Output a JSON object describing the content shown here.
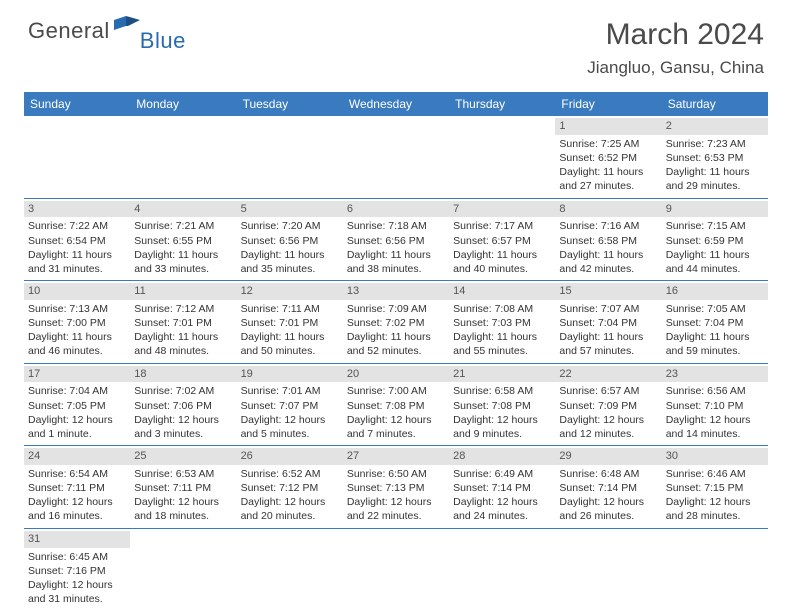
{
  "logo": {
    "general": "General",
    "blue": "Blue"
  },
  "header": {
    "month_title": "March 2024",
    "location": "Jiangluo, Gansu, China"
  },
  "colors": {
    "header_bg": "#3a7bbf",
    "header_text": "#ffffff",
    "daynum_bg": "#e3e3e3",
    "daynum_text": "#555555",
    "body_text": "#333333",
    "rule": "#3a7bbf",
    "logo_gray": "#4a4a4a",
    "logo_blue": "#2a6bb0"
  },
  "weekdays": [
    "Sunday",
    "Monday",
    "Tuesday",
    "Wednesday",
    "Thursday",
    "Friday",
    "Saturday"
  ],
  "weeks": [
    [
      null,
      null,
      null,
      null,
      null,
      {
        "n": "1",
        "sunrise": "Sunrise: 7:25 AM",
        "sunset": "Sunset: 6:52 PM",
        "daylight": "Daylight: 11 hours and 27 minutes."
      },
      {
        "n": "2",
        "sunrise": "Sunrise: 7:23 AM",
        "sunset": "Sunset: 6:53 PM",
        "daylight": "Daylight: 11 hours and 29 minutes."
      }
    ],
    [
      {
        "n": "3",
        "sunrise": "Sunrise: 7:22 AM",
        "sunset": "Sunset: 6:54 PM",
        "daylight": "Daylight: 11 hours and 31 minutes."
      },
      {
        "n": "4",
        "sunrise": "Sunrise: 7:21 AM",
        "sunset": "Sunset: 6:55 PM",
        "daylight": "Daylight: 11 hours and 33 minutes."
      },
      {
        "n": "5",
        "sunrise": "Sunrise: 7:20 AM",
        "sunset": "Sunset: 6:56 PM",
        "daylight": "Daylight: 11 hours and 35 minutes."
      },
      {
        "n": "6",
        "sunrise": "Sunrise: 7:18 AM",
        "sunset": "Sunset: 6:56 PM",
        "daylight": "Daylight: 11 hours and 38 minutes."
      },
      {
        "n": "7",
        "sunrise": "Sunrise: 7:17 AM",
        "sunset": "Sunset: 6:57 PM",
        "daylight": "Daylight: 11 hours and 40 minutes."
      },
      {
        "n": "8",
        "sunrise": "Sunrise: 7:16 AM",
        "sunset": "Sunset: 6:58 PM",
        "daylight": "Daylight: 11 hours and 42 minutes."
      },
      {
        "n": "9",
        "sunrise": "Sunrise: 7:15 AM",
        "sunset": "Sunset: 6:59 PM",
        "daylight": "Daylight: 11 hours and 44 minutes."
      }
    ],
    [
      {
        "n": "10",
        "sunrise": "Sunrise: 7:13 AM",
        "sunset": "Sunset: 7:00 PM",
        "daylight": "Daylight: 11 hours and 46 minutes."
      },
      {
        "n": "11",
        "sunrise": "Sunrise: 7:12 AM",
        "sunset": "Sunset: 7:01 PM",
        "daylight": "Daylight: 11 hours and 48 minutes."
      },
      {
        "n": "12",
        "sunrise": "Sunrise: 7:11 AM",
        "sunset": "Sunset: 7:01 PM",
        "daylight": "Daylight: 11 hours and 50 minutes."
      },
      {
        "n": "13",
        "sunrise": "Sunrise: 7:09 AM",
        "sunset": "Sunset: 7:02 PM",
        "daylight": "Daylight: 11 hours and 52 minutes."
      },
      {
        "n": "14",
        "sunrise": "Sunrise: 7:08 AM",
        "sunset": "Sunset: 7:03 PM",
        "daylight": "Daylight: 11 hours and 55 minutes."
      },
      {
        "n": "15",
        "sunrise": "Sunrise: 7:07 AM",
        "sunset": "Sunset: 7:04 PM",
        "daylight": "Daylight: 11 hours and 57 minutes."
      },
      {
        "n": "16",
        "sunrise": "Sunrise: 7:05 AM",
        "sunset": "Sunset: 7:04 PM",
        "daylight": "Daylight: 11 hours and 59 minutes."
      }
    ],
    [
      {
        "n": "17",
        "sunrise": "Sunrise: 7:04 AM",
        "sunset": "Sunset: 7:05 PM",
        "daylight": "Daylight: 12 hours and 1 minute."
      },
      {
        "n": "18",
        "sunrise": "Sunrise: 7:02 AM",
        "sunset": "Sunset: 7:06 PM",
        "daylight": "Daylight: 12 hours and 3 minutes."
      },
      {
        "n": "19",
        "sunrise": "Sunrise: 7:01 AM",
        "sunset": "Sunset: 7:07 PM",
        "daylight": "Daylight: 12 hours and 5 minutes."
      },
      {
        "n": "20",
        "sunrise": "Sunrise: 7:00 AM",
        "sunset": "Sunset: 7:08 PM",
        "daylight": "Daylight: 12 hours and 7 minutes."
      },
      {
        "n": "21",
        "sunrise": "Sunrise: 6:58 AM",
        "sunset": "Sunset: 7:08 PM",
        "daylight": "Daylight: 12 hours and 9 minutes."
      },
      {
        "n": "22",
        "sunrise": "Sunrise: 6:57 AM",
        "sunset": "Sunset: 7:09 PM",
        "daylight": "Daylight: 12 hours and 12 minutes."
      },
      {
        "n": "23",
        "sunrise": "Sunrise: 6:56 AM",
        "sunset": "Sunset: 7:10 PM",
        "daylight": "Daylight: 12 hours and 14 minutes."
      }
    ],
    [
      {
        "n": "24",
        "sunrise": "Sunrise: 6:54 AM",
        "sunset": "Sunset: 7:11 PM",
        "daylight": "Daylight: 12 hours and 16 minutes."
      },
      {
        "n": "25",
        "sunrise": "Sunrise: 6:53 AM",
        "sunset": "Sunset: 7:11 PM",
        "daylight": "Daylight: 12 hours and 18 minutes."
      },
      {
        "n": "26",
        "sunrise": "Sunrise: 6:52 AM",
        "sunset": "Sunset: 7:12 PM",
        "daylight": "Daylight: 12 hours and 20 minutes."
      },
      {
        "n": "27",
        "sunrise": "Sunrise: 6:50 AM",
        "sunset": "Sunset: 7:13 PM",
        "daylight": "Daylight: 12 hours and 22 minutes."
      },
      {
        "n": "28",
        "sunrise": "Sunrise: 6:49 AM",
        "sunset": "Sunset: 7:14 PM",
        "daylight": "Daylight: 12 hours and 24 minutes."
      },
      {
        "n": "29",
        "sunrise": "Sunrise: 6:48 AM",
        "sunset": "Sunset: 7:14 PM",
        "daylight": "Daylight: 12 hours and 26 minutes."
      },
      {
        "n": "30",
        "sunrise": "Sunrise: 6:46 AM",
        "sunset": "Sunset: 7:15 PM",
        "daylight": "Daylight: 12 hours and 28 minutes."
      }
    ],
    [
      {
        "n": "31",
        "sunrise": "Sunrise: 6:45 AM",
        "sunset": "Sunset: 7:16 PM",
        "daylight": "Daylight: 12 hours and 31 minutes."
      },
      null,
      null,
      null,
      null,
      null,
      null
    ]
  ]
}
